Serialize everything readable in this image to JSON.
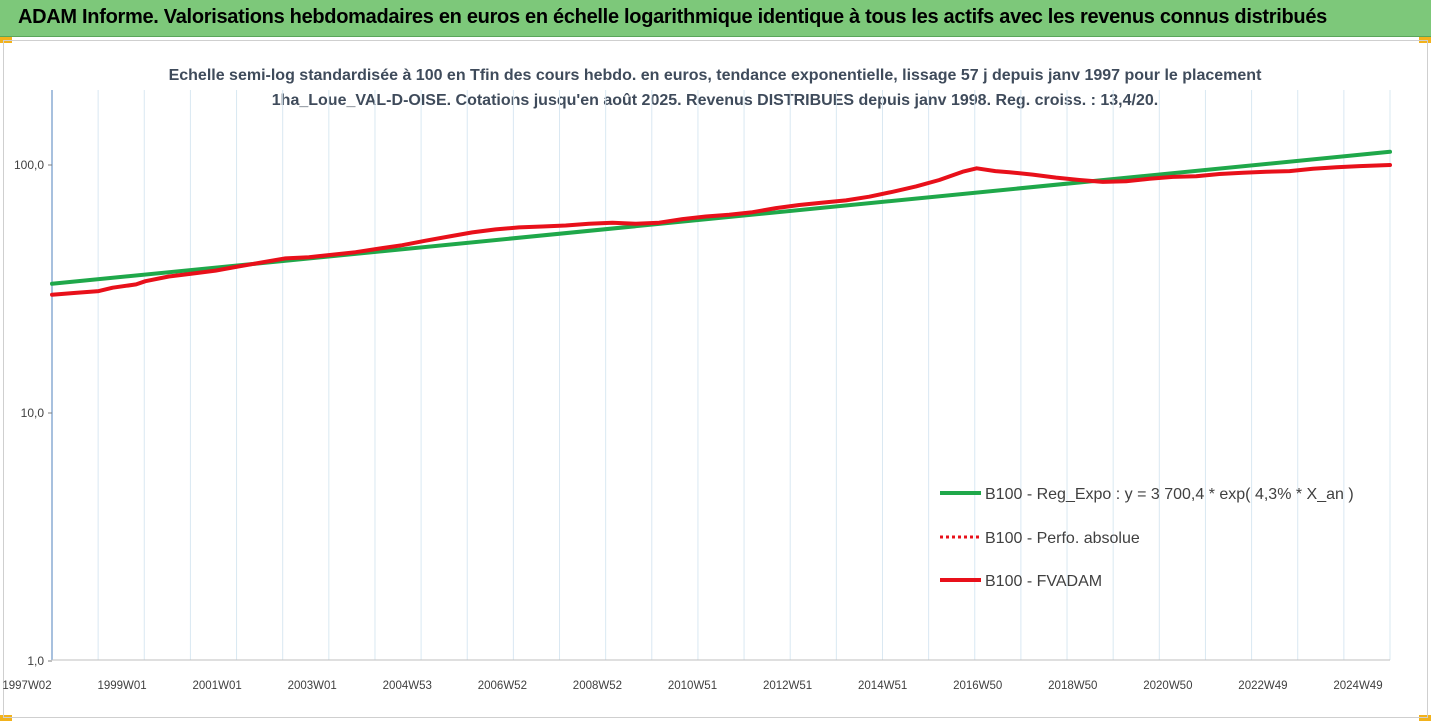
{
  "header": {
    "title": "ADAM Informe. Valorisations hebdomadaires en euros en échelle logarithmique identique à tous les actifs avec les revenus connus distribués"
  },
  "colors": {
    "header_bg": "#7dc87a",
    "trend": "#1fa84a",
    "series": "#e8101a",
    "accent_corner": "#f2b21c"
  },
  "chart_data": {
    "type": "line",
    "title": "Echelle semi-log standardisée à 100 en Tfin des cours hebdo. en euros, tendance exponentielle, lissage 57 j depuis janv 1997 pour le placement 1ha_Loue_VAL-D-OISE. Cotations jusqu'en août 2025. Revenus DISTRIBUES depuis janv 1998. Reg. croiss. : 13,4/20.",
    "xlabel": "",
    "ylabel": "",
    "yscale": "log",
    "ylim": [
      1,
      200
    ],
    "xlim": [
      1997.0,
      2025.65
    ],
    "y_ticks": [
      "1,0",
      "10,0",
      "100,0"
    ],
    "x_ticks": [
      "1997W02",
      "1999W01",
      "2001W01",
      "2003W01",
      "2004W53",
      "2006W52",
      "2008W52",
      "2010W51",
      "2012W51",
      "2014W51",
      "2016W50",
      "2018W50",
      "2020W50",
      "2022W49",
      "2024W49"
    ],
    "grid": "vertical",
    "legend_position": "right",
    "series": [
      {
        "name": "B100 - Reg_Expo : y = 3 700,4 * exp( 4,3% *  X_an )",
        "color": "#1fa84a",
        "style": "solid",
        "x": [
          1997.0,
          2025.65
        ],
        "y": [
          33.2,
          113.0
        ]
      },
      {
        "name": "B100 - Perfo. absolue",
        "color": "#e8101a",
        "style": "dotted",
        "x": [],
        "y": []
      },
      {
        "name": "B100 - FVADAM",
        "color": "#e8101a",
        "style": "solid",
        "x": [
          1997.0,
          1997.5,
          1998.0,
          1998.3,
          1998.8,
          1999.0,
          1999.5,
          2000.0,
          2000.5,
          2001.0,
          2001.5,
          2002.0,
          2002.5,
          2003.0,
          2003.5,
          2004.0,
          2004.5,
          2005.0,
          2005.5,
          2006.0,
          2006.5,
          2007.0,
          2007.5,
          2008.0,
          2008.5,
          2009.0,
          2009.5,
          2010.0,
          2010.5,
          2011.0,
          2011.5,
          2012.0,
          2012.5,
          2013.0,
          2013.5,
          2014.0,
          2014.5,
          2015.0,
          2015.5,
          2016.0,
          2016.5,
          2016.8,
          2017.2,
          2017.5,
          2018.0,
          2018.5,
          2019.0,
          2019.5,
          2020.0,
          2020.5,
          2021.0,
          2021.5,
          2022.0,
          2022.5,
          2023.0,
          2023.5,
          2024.0,
          2024.5,
          2025.0,
          2025.65
        ],
        "y": [
          30.0,
          30.5,
          31.0,
          32.0,
          33.0,
          34.0,
          35.5,
          36.5,
          37.5,
          39.0,
          40.5,
          42.0,
          42.5,
          43.5,
          44.5,
          46.0,
          47.5,
          49.5,
          51.5,
          53.5,
          55.0,
          56.0,
          56.5,
          57.0,
          58.0,
          58.5,
          58.0,
          58.5,
          60.5,
          62.0,
          63.0,
          64.5,
          67.0,
          69.0,
          70.5,
          72.0,
          74.5,
          78.0,
          82.0,
          87.0,
          94.0,
          97.0,
          94.5,
          93.5,
          91.5,
          89.0,
          87.0,
          85.5,
          86.0,
          88.0,
          89.5,
          90.0,
          92.0,
          93.0,
          94.0,
          94.5,
          96.5,
          98.0,
          99.0,
          100.0
        ]
      }
    ]
  }
}
